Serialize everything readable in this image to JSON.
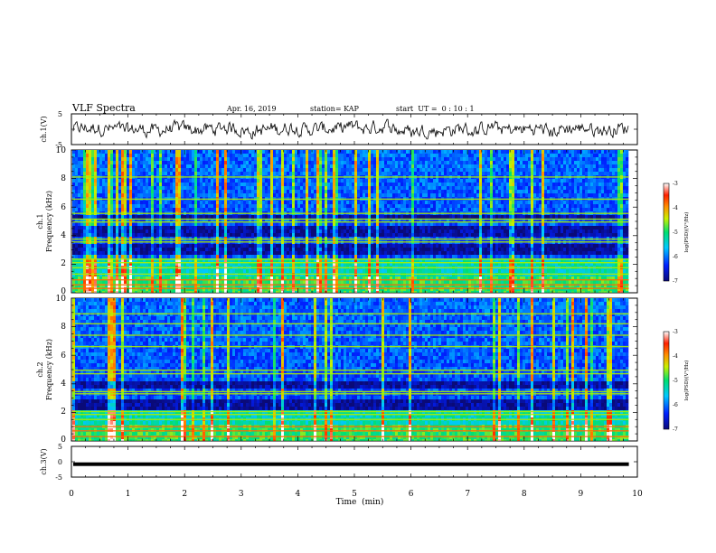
{
  "header": {
    "title": "VLF Spectra",
    "date": "Apr. 16, 2019",
    "station": "station= KAP",
    "start_ut": "start  UT =  0 : 10 : 1"
  },
  "chart_data": [
    {
      "type": "line",
      "ylabel": "ch.1(V)",
      "ylim": [
        -5,
        5
      ],
      "yticks": [
        "5",
        "-5"
      ],
      "xlim": [
        0,
        10
      ],
      "series": [
        {
          "kind": "noise-waveform",
          "amplitude_v": 1.6,
          "mean_v": 0.0,
          "x_end_min": 9.85
        }
      ]
    },
    {
      "type": "heatmap",
      "ylabel": "ch.1\nFrequency  (kHz)",
      "xlim": [
        0,
        10
      ],
      "ylim": [
        0,
        10
      ],
      "yticks": [
        "0",
        "2",
        "4",
        "6",
        "8",
        "10"
      ],
      "data_extent_min": 9.85,
      "colorbar": {
        "label": "log(PSD)(V²/Hz)",
        "range": [
          -7,
          -3
        ],
        "ticks": [
          "-3",
          "-4",
          "-5",
          "-6",
          "-7"
        ]
      },
      "dark_bands_khz": [
        [
          2.6,
          3.4
        ],
        [
          3.9,
          4.8
        ],
        [
          5.2,
          5.5
        ]
      ],
      "bright_lines_khz": [
        0.3,
        0.55,
        0.9,
        1.3,
        1.75,
        2.1,
        2.35,
        3.55,
        3.75,
        4.95,
        5.15,
        5.55,
        6.55,
        8.1
      ]
    },
    {
      "type": "heatmap",
      "ylabel": "ch.2\nFrequency  (kHz)",
      "xlim": [
        0,
        10
      ],
      "ylim": [
        0,
        10
      ],
      "yticks": [
        "0",
        "2",
        "4",
        "6",
        "8",
        "10"
      ],
      "data_extent_min": 9.85,
      "colorbar": {
        "label": "log(PSD)(V²/Hz)",
        "range": [
          -7,
          -3
        ],
        "ticks": [
          "-3",
          "-4",
          "-5",
          "-6",
          "-7"
        ]
      },
      "dark_bands_khz": [
        [
          2.2,
          3.0
        ],
        [
          3.6,
          4.2
        ]
      ],
      "bright_lines_khz": [
        0.3,
        0.7,
        1.0,
        1.5,
        1.85,
        2.05,
        3.3,
        3.45,
        4.7,
        4.95,
        6.6,
        7.4,
        8.2,
        8.9
      ]
    },
    {
      "type": "line",
      "ylabel": "ch.3(V)",
      "ylim": [
        -5,
        5
      ],
      "yticks": [
        "5",
        "0",
        "-5"
      ],
      "xlim": [
        0,
        10
      ],
      "xlabel": "Time  (min)",
      "xticks": [
        "0",
        "1",
        "2",
        "3",
        "4",
        "5",
        "6",
        "7",
        "8",
        "9",
        "10"
      ],
      "series": [
        {
          "kind": "flat",
          "value_v": -0.8,
          "x_end_min": 9.85
        }
      ]
    }
  ]
}
